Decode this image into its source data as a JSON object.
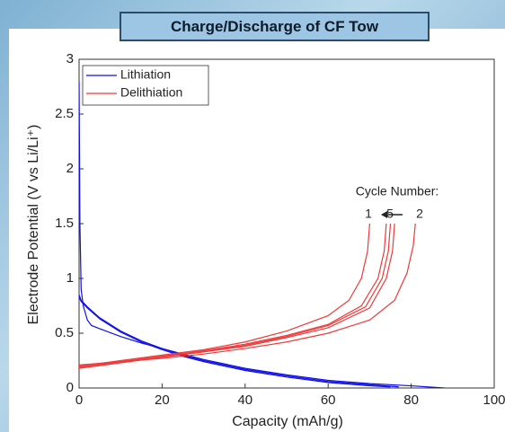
{
  "chart_data": {
    "type": "line",
    "title": "Charge/Discharge of CF Tow",
    "x_label": "Capacity (mAh/g)",
    "y_label": "Electrode Potential (V vs Li/Li⁺)",
    "xlim": [
      0,
      100
    ],
    "xticks": [
      0,
      20,
      40,
      60,
      80,
      100
    ],
    "ylim": [
      0,
      3
    ],
    "yticks": [
      0,
      0.5,
      1,
      1.5,
      2,
      2.5,
      3
    ],
    "legend": "upper left",
    "series": [
      {
        "name": "Lithiation",
        "color": "#1010e8",
        "curves": [
          {
            "x": [
              0,
              0.2,
              0.5,
              1,
              2,
              3,
              5,
              10,
              15,
              20,
              25,
              30,
              40,
              50,
              60,
              70,
              80,
              88
            ],
            "values": [
              2.8,
              1.5,
              0.9,
              0.75,
              0.62,
              0.57,
              0.54,
              0.47,
              0.41,
              0.36,
              0.31,
              0.26,
              0.18,
              0.12,
              0.07,
              0.04,
              0.02,
              0
            ]
          },
          {
            "x": [
              0,
              0.5,
              1,
              2,
              5,
              10,
              15,
              20,
              25,
              30,
              40,
              50,
              60,
              70,
              77
            ],
            "values": [
              0.85,
              0.8,
              0.78,
              0.74,
              0.64,
              0.52,
              0.43,
              0.36,
              0.3,
              0.25,
              0.17,
              0.11,
              0.06,
              0.03,
              0.01
            ]
          },
          {
            "x": [
              0,
              0.5,
              1,
              2,
              5,
              10,
              15,
              20,
              25,
              30,
              40,
              50,
              60,
              70,
              75
            ],
            "values": [
              0.83,
              0.79,
              0.77,
              0.73,
              0.63,
              0.51,
              0.42,
              0.35,
              0.29,
              0.24,
              0.16,
              0.1,
              0.05,
              0.02,
              0.01
            ]
          }
        ]
      },
      {
        "name": "Delithiation",
        "color": "#ee3a3a",
        "curves": [
          {
            "x": [
              0,
              10,
              20,
              30,
              40,
              50,
              60,
              65,
              68,
              69.5,
              70
            ],
            "values": [
              0.2,
              0.25,
              0.3,
              0.35,
              0.42,
              0.52,
              0.66,
              0.8,
              1.0,
              1.25,
              1.5
            ]
          },
          {
            "x": [
              0,
              10,
              20,
              30,
              40,
              50,
              60,
              68,
              72,
              73.5,
              74
            ],
            "values": [
              0.19,
              0.24,
              0.29,
              0.34,
              0.4,
              0.48,
              0.58,
              0.75,
              1.0,
              1.25,
              1.5
            ]
          },
          {
            "x": [
              0,
              10,
              20,
              30,
              40,
              50,
              60,
              69,
              73,
              74.5,
              75
            ],
            "values": [
              0.18,
              0.23,
              0.28,
              0.33,
              0.39,
              0.47,
              0.57,
              0.74,
              1.0,
              1.25,
              1.5
            ]
          },
          {
            "x": [
              0,
              10,
              20,
              30,
              40,
              50,
              60,
              70,
              74,
              75.5,
              76
            ],
            "values": [
              0.18,
              0.23,
              0.28,
              0.33,
              0.38,
              0.46,
              0.55,
              0.73,
              1.0,
              1.25,
              1.5
            ]
          },
          {
            "x": [
              0,
              10,
              20,
              30,
              40,
              50,
              60,
              70,
              76,
              79,
              80.5,
              81
            ],
            "values": [
              0.21,
              0.24,
              0.27,
              0.31,
              0.36,
              0.42,
              0.5,
              0.62,
              0.8,
              1.05,
              1.3,
              1.5
            ]
          }
        ]
      }
    ],
    "annotations": [
      "Cycle Number:",
      "1",
      "5",
      "2"
    ]
  }
}
